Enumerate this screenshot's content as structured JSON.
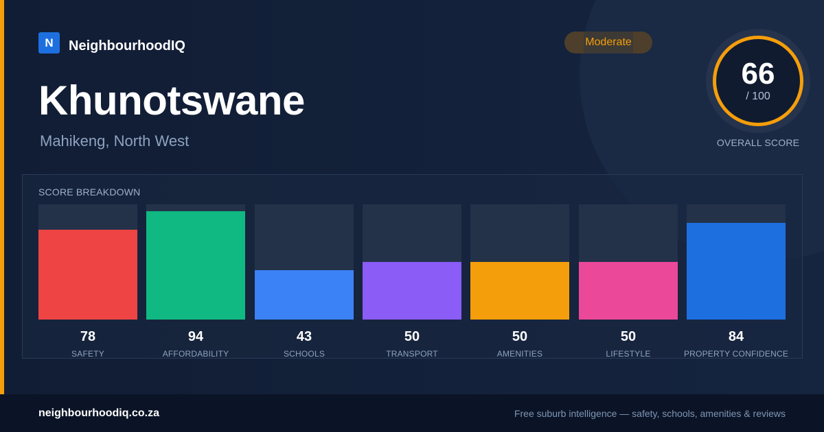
{
  "brand": {
    "logo_letter": "N",
    "name": "NeighbourhoodIQ"
  },
  "suburb": {
    "name": "Khunotswane",
    "location": "Mahikeng, North West"
  },
  "rating_badge": {
    "label": "Moderate",
    "color": "#f59e0b"
  },
  "overall": {
    "score": "66",
    "max_label": "/ 100",
    "caption": "OVERALL SCORE",
    "ring_color": "#f59e0b"
  },
  "breakdown": {
    "title": "SCORE BREAKDOWN",
    "max": 100,
    "items": [
      {
        "label": "SAFETY",
        "value": "78",
        "score": 78,
        "color": "#ef4444"
      },
      {
        "label": "AFFORDABILITY",
        "value": "94",
        "score": 94,
        "color": "#10b981"
      },
      {
        "label": "SCHOOLS",
        "value": "43",
        "score": 43,
        "color": "#3b82f6"
      },
      {
        "label": "TRANSPORT",
        "value": "50",
        "score": 50,
        "color": "#8b5cf6"
      },
      {
        "label": "AMENITIES",
        "value": "50",
        "score": 50,
        "color": "#f59e0b"
      },
      {
        "label": "LIFESTYLE",
        "value": "50",
        "score": 50,
        "color": "#ec4899"
      },
      {
        "label": "PROPERTY CONFIDENCE",
        "value": "84",
        "score": 84,
        "color": "#1d6fe0"
      }
    ]
  },
  "footer": {
    "site": "neighbourhoodiq.co.za",
    "tagline": "Free suburb intelligence — safety, schools, amenities & reviews"
  }
}
